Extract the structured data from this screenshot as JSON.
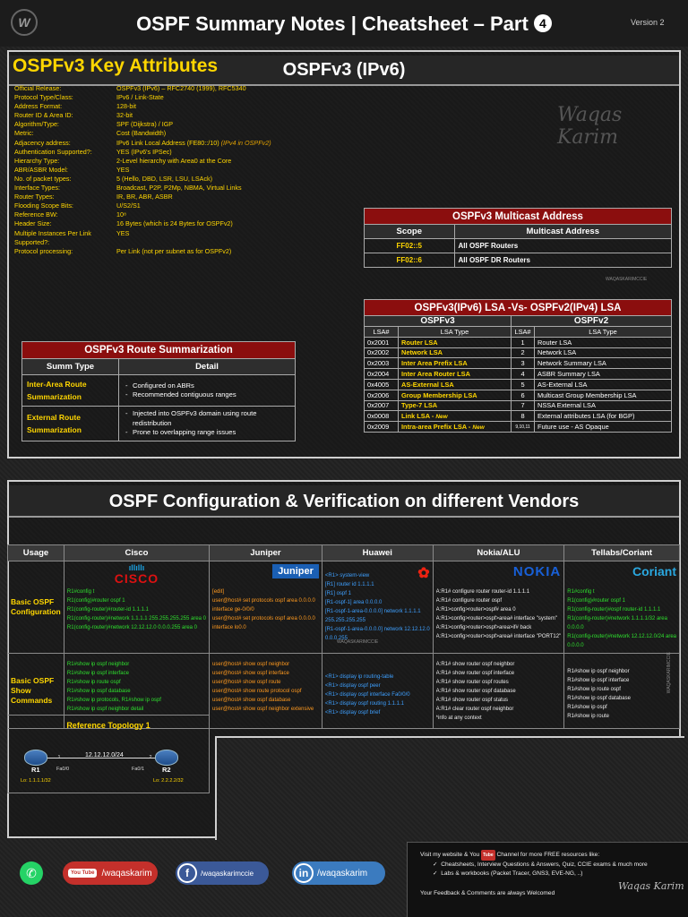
{
  "header": {
    "title": "OSPF Summary Notes | Cheatsheet – Part",
    "part": "4",
    "version": "Version 2",
    "logo_text": "W"
  },
  "section1": {
    "title": "OSPFv3 (IPv6)",
    "watermark": "Waqas Karim",
    "key_attributes_title": "OSPFv3 Key Attributes",
    "attributes": [
      {
        "name": "Official Release:",
        "value": "OSPFv3 (IPv6) – RFC2740 (1999), RFC5340",
        "note": ""
      },
      {
        "name": "Protocol Type/Class:",
        "value": "IPv6 / Link-State",
        "note": ""
      },
      {
        "name": "Address Format:",
        "value": "128-bit",
        "note": ""
      },
      {
        "name": "Router ID & Area ID:",
        "value": "32-bit",
        "note": ""
      },
      {
        "name": "Algorithm/Type:",
        "value": "SPF (Dijkstra) / IGP",
        "note": ""
      },
      {
        "name": "Metric:",
        "value": "Cost (Bandwidth)",
        "note": ""
      },
      {
        "name": "Adjacency address:",
        "value": "IPv6 Link Local Address (FE80::/10)",
        "note": "(IPv4 in OSPFv2)"
      },
      {
        "name": "Authentication Supported?:",
        "value": "YES (IPv6's IPSec)",
        "note": ""
      },
      {
        "name": "Hierarchy Type:",
        "value": "2-Level hierarchy with Area0 at the Core",
        "note": ""
      },
      {
        "name": "ABR/ASBR Model:",
        "value": "YES",
        "note": ""
      },
      {
        "name": "No. of packet types:",
        "value": "5 (Hello, DBD, LSR, LSU, LSAck)",
        "note": ""
      },
      {
        "name": "Interface Types:",
        "value": "Broadcast, P2P, P2Mp, NBMA, Virtual Links",
        "note": ""
      },
      {
        "name": "Router Types:",
        "value": "IR, BR, ABR, ASBR",
        "note": ""
      },
      {
        "name": "Flooding Scope Bits:",
        "value": "U/S2/S1",
        "note": ""
      },
      {
        "name": "Reference BW:",
        "value": "10⁸",
        "note": ""
      },
      {
        "name": "Header Size:",
        "value": "16 Bytes (which is 24 Bytes for OSPFv2)",
        "note": ""
      },
      {
        "name": "Multiple Instances Per Link Supported?:",
        "value": "YES",
        "note": ""
      },
      {
        "name": "Protocol processing:",
        "value": "Per Link (not per subnet as for OSPFv2)",
        "note": ""
      }
    ],
    "multicast": {
      "title": "OSPFv3 Multicast Address",
      "headers": [
        "Scope",
        "Multicast Address"
      ],
      "rows": [
        [
          "FF02::5",
          "All OSPF Routers"
        ],
        [
          "FF02::6",
          "All OSPF DR Routers"
        ]
      ],
      "watermark": "WAQASKARIMCCIE"
    },
    "lsa": {
      "title": "OSPFv3(IPv6) LSA  -Vs-  OSPFv2(IPv4) LSA",
      "v3": "OSPFv3",
      "v2": "OSPFv2",
      "subheaders": [
        "LSA#",
        "LSA Type",
        "LSA#",
        "LSA Type"
      ],
      "rows": [
        [
          "0x2001",
          "Router LSA",
          "",
          "1",
          "Router LSA"
        ],
        [
          "0x2002",
          "Network LSA",
          "",
          "2",
          "Network LSA"
        ],
        [
          "0x2003",
          "Inter Area Prefix LSA",
          "",
          "3",
          "Network Summary LSA"
        ],
        [
          "0x2004",
          "Inter Area Router LSA",
          "",
          "4",
          "ASBR Summary LSA"
        ],
        [
          "0x4005",
          "AS-External LSA",
          "",
          "5",
          "AS-External LSA"
        ],
        [
          "0x2006",
          "Group Membership LSA",
          "",
          "6",
          "Multicast Group Membership LSA"
        ],
        [
          "0x2007",
          "Type-7 LSA",
          "",
          "7",
          "NSSA External LSA"
        ],
        [
          "0x0008",
          "Link LSA",
          "New",
          "8",
          "External attributes LSA (for BGP)"
        ],
        [
          "0x2009",
          "Intra-area Prefix LSA",
          "New",
          "9,10,11",
          "Future use - AS Opaque"
        ]
      ]
    },
    "summarization": {
      "title": "OSPFv3 Route Summarization",
      "headers": [
        "Summ Type",
        "Detail"
      ],
      "rows": [
        {
          "type": "Inter-Area Route Summarization",
          "details": [
            "Configured on ABRs",
            "Recommended contiguous ranges"
          ]
        },
        {
          "type": "External Route Summarization",
          "details": [
            "Injected into OSPFv3 domain using route redistribution",
            "Prone to overlapping range issues"
          ]
        }
      ]
    }
  },
  "section2": {
    "title": "OSPF Configuration & Verification on different Vendors",
    "headers": [
      "Usage",
      "Cisco",
      "Juniper",
      "Huawei",
      "Nokia/ALU",
      "Tellabs/Coriant"
    ],
    "logos": {
      "cisco": "CISCO",
      "juniper": "Juniper",
      "huawei": "HUAWEI",
      "nokia": "NOKIA",
      "coriant": "Coriant"
    },
    "rows": [
      {
        "usage": "Basic OSPF Configuration",
        "cisco": [
          "R1#config t",
          "R1(config)#router ospf 1",
          "R1(config-router)#router-id 1.1.1.1",
          "R1(config-router)#network 1.1.1.1 255.255.255.255 area 0",
          "R1(config-router)#network 12.12.12.0 0.0.0.255 area 0"
        ],
        "juniper": [
          "[edit]",
          "user@host# set protocols ospf area 0.0.0.0",
          "interface ge-0/0/0",
          "user@host# set protocols ospf area 0.0.0.0",
          "interface lo0.0"
        ],
        "huawei": [
          "<R1> system-view",
          "[R1] router id 1.1.1.1",
          "[R1] ospf 1",
          "[R1-ospf-1] area 0.0.0.0",
          "[R1-ospf-1-area-0.0.0.0] network 1.1.1.1",
          "255.255.255.255",
          "[R1-ospf-1-area-0.0.0.0] network 12.12.12.0",
          "0.0.0.255"
        ],
        "nokia": [
          "A:R1# configure router router-id 1.1.1.1",
          "A:R1# configure router ospf",
          "A:R1>config>router>ospf# area 0",
          "A:R1>config>router>ospf>area# interface \"system\"",
          "A:R1>config>router>ospf>area>if# back",
          "A:R1>config>router>ospf>area# interface \"PORT12\""
        ],
        "coriant": [
          "R1#config t",
          "R1(config)#router ospf 1",
          "R1(config-router)#ospf router-id 1.1.1.1",
          "R1(config-router)#network 1.1.1.1/32 area",
          "0.0.0.0",
          "R1(config-router)#network 12.12.12.0/24 area",
          "0.0.0.0"
        ]
      },
      {
        "usage": "Basic OSPF Show Commands",
        "cisco": [
          "R1#show ip ospf neighbor",
          "R1#show ip ospf interface",
          "R1#show ip route ospf",
          "R1#show ip ospf database",
          "R1#show ip protocols, R1#show ip ospf",
          "R1#show ip ospf neighbor detail"
        ],
        "juniper": [
          "user@host# show ospf neighbor",
          "user@host# show ospf interface",
          "user@host# show ospf route",
          "user@host# show route protocol ospf",
          "user@host# show ospf database",
          "user@host# show ospf neighbor extensive"
        ],
        "huawei": [
          "<R1> display ip routing-table",
          "<R1> display ospf peer",
          "<R1> display ospf interface Fa0/0/0",
          "<R1> display ospf routing 1.1.1.1",
          "<R1> display ospf brief"
        ],
        "nokia": [
          "A:R1# show router ospf neighbor",
          "A:R1# show router ospf interface",
          "A:R1# show router ospf routes",
          "A:R1# show router ospf database",
          "A:R1# show router ospf status",
          "A:R1# clear router ospf neighbor",
          "*info at any context"
        ],
        "coriant": [
          "R1#show ip ospf neighbor",
          "R1#show ip ospf interface",
          "R1#show ip route ospf",
          "R1#show ip ospf database",
          "R1#show ip ospf",
          "R1#show ip route"
        ]
      }
    ],
    "watermark_h": "WAQASKARIMCCIE",
    "watermark_v": "WAQASKARIMCCIE",
    "topology": {
      "title": "Reference Topology 1",
      "subnet": "12.12.12.0/24",
      "r1": {
        "name": "R1",
        "ip": ".1",
        "iface": "Fa0/0",
        "lo": "Lo: 1.1.1.1/32"
      },
      "r2": {
        "name": "R2",
        "ip": ".2",
        "iface": "Fa0/1",
        "lo": "Lo: 2.2.2.2/32"
      }
    }
  },
  "footer": {
    "youtube": "/waqaskarim",
    "youtube_icon": "You Tube",
    "facebook": "/waqaskarimccie",
    "linkedin": "/waqaskarim",
    "resources": {
      "line1_a": "Visit my website & You",
      "line1_yt": "Tube",
      "line1_b": "Channel for more FREE resources like:",
      "items": [
        "Cheatsheets, Interview Questions & Answers, Quiz, CCIE exams & much more",
        "Labs & workbooks (Packet Tracer, GNS3, EVE-NG, ..)"
      ],
      "feedback": "Your Feedback & Comments are always Welcomed",
      "signature": "Waqas Karim"
    }
  }
}
